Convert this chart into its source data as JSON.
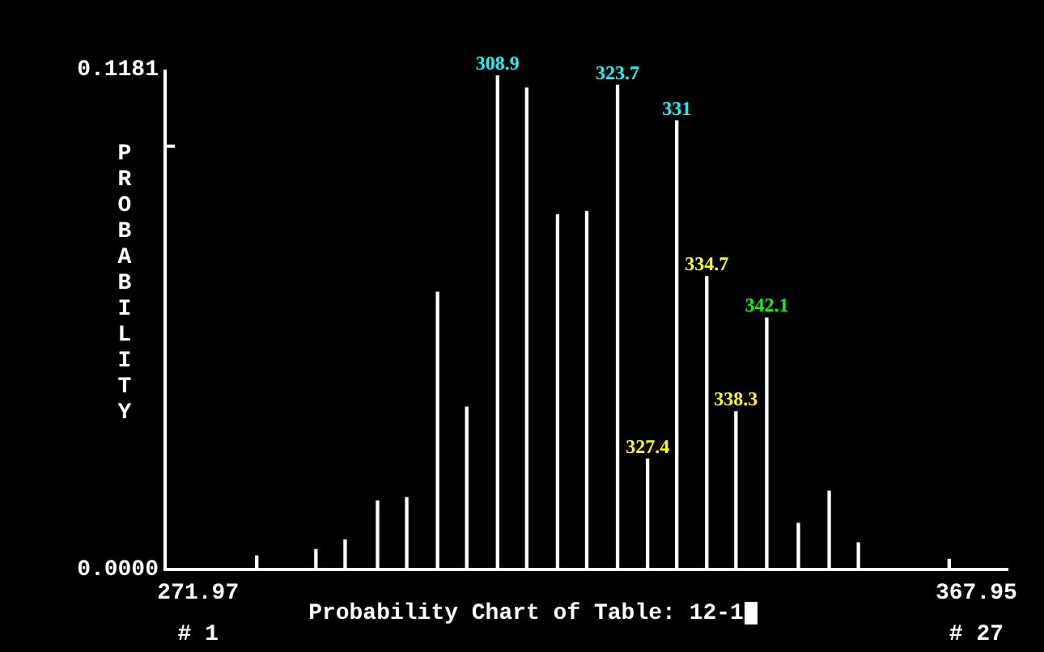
{
  "chart_data": {
    "type": "bar",
    "xlabel": "Probability Chart of Table: 12-1",
    "ylabel": "PROBABILITY",
    "x": [
      279.2,
      286.5,
      290.1,
      294.1,
      297.7,
      301.5,
      305.1,
      308.9,
      312.5,
      316.3,
      319.9,
      323.7,
      327.4,
      331.0,
      334.7,
      338.3,
      342.1,
      346.0,
      349.8,
      353.4,
      364.6
    ],
    "values": [
      0.0032,
      0.0047,
      0.007,
      0.0162,
      0.017,
      0.0655,
      0.0384,
      0.1166,
      0.1137,
      0.0838,
      0.0846,
      0.1144,
      0.0261,
      0.106,
      0.0692,
      0.0373,
      0.0594,
      0.0109,
      0.0185,
      0.0063,
      0.0024
    ],
    "color": "#ffffff",
    "xlim": [
      267.9,
      371.9
    ],
    "xticks": [
      271.97,
      367.95
    ],
    "ylim": [
      0,
      0.1181
    ],
    "yticks": [
      {
        "value": 0,
        "label": "0.0000"
      },
      {
        "value": 0.1,
        "label": null
      },
      0.1181
    ],
    "grid": false,
    "legend": false,
    "annotations": [
      {
        "text": "308.9",
        "x": 308.9,
        "y": 0.1166
      },
      {
        "text": "323.7",
        "x": 323.7,
        "y": 0.1144
      },
      {
        "text": "331",
        "x": 331.0,
        "y": 0.106
      },
      {
        "text": "327.4",
        "x": 327.4,
        "y": 0.0261
      },
      {
        "text": "334.7",
        "x": 334.7,
        "y": 0.0692
      },
      {
        "text": "338.3",
        "x": 338.3,
        "y": 0.0373
      },
      {
        "text": "342.1",
        "x": 342.1,
        "y": 0.0594
      },
      "# 1",
      "# 27"
    ]
  }
}
